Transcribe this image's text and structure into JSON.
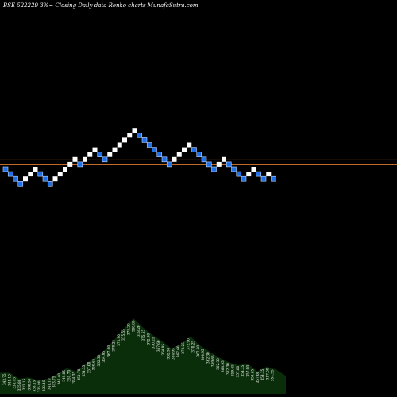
{
  "chart_data": {
    "type": "renko",
    "title": "BSE 522229 3%~   Closing Daily data  Renko  charts MunafaSutra.com",
    "colors": {
      "background": "#000000",
      "up_brick": "#ffffff",
      "down_brick": "#1f6fe6",
      "down_brick_edge": "#bcd4ff",
      "reference_line": "#c26a2a",
      "volume_fill": "#0a2e0a"
    },
    "reference_lines": [
      1,
      0
    ],
    "bricks": [
      {
        "level": 0,
        "dir": "down"
      },
      {
        "level": -1,
        "dir": "down"
      },
      {
        "level": -2,
        "dir": "down"
      },
      {
        "level": -3,
        "dir": "down"
      },
      {
        "level": -2,
        "dir": "up"
      },
      {
        "level": -1,
        "dir": "up"
      },
      {
        "level": 0,
        "dir": "up"
      },
      {
        "level": -1,
        "dir": "down"
      },
      {
        "level": -2,
        "dir": "down"
      },
      {
        "level": -3,
        "dir": "down"
      },
      {
        "level": -2,
        "dir": "up"
      },
      {
        "level": -1,
        "dir": "up"
      },
      {
        "level": 0,
        "dir": "up"
      },
      {
        "level": 1,
        "dir": "up"
      },
      {
        "level": 2,
        "dir": "up"
      },
      {
        "level": 1,
        "dir": "down"
      },
      {
        "level": 2,
        "dir": "up"
      },
      {
        "level": 3,
        "dir": "up"
      },
      {
        "level": 4,
        "dir": "up"
      },
      {
        "level": 3,
        "dir": "down"
      },
      {
        "level": 2,
        "dir": "down"
      },
      {
        "level": 3,
        "dir": "up"
      },
      {
        "level": 4,
        "dir": "up"
      },
      {
        "level": 5,
        "dir": "up"
      },
      {
        "level": 6,
        "dir": "up"
      },
      {
        "level": 7,
        "dir": "up"
      },
      {
        "level": 8,
        "dir": "up"
      },
      {
        "level": 7,
        "dir": "down"
      },
      {
        "level": 6,
        "dir": "down"
      },
      {
        "level": 5,
        "dir": "down"
      },
      {
        "level": 4,
        "dir": "down"
      },
      {
        "level": 3,
        "dir": "down"
      },
      {
        "level": 2,
        "dir": "down"
      },
      {
        "level": 1,
        "dir": "down"
      },
      {
        "level": 2,
        "dir": "up"
      },
      {
        "level": 3,
        "dir": "up"
      },
      {
        "level": 4,
        "dir": "up"
      },
      {
        "level": 5,
        "dir": "up"
      },
      {
        "level": 4,
        "dir": "down"
      },
      {
        "level": 3,
        "dir": "down"
      },
      {
        "level": 2,
        "dir": "down"
      },
      {
        "level": 1,
        "dir": "down"
      },
      {
        "level": 0,
        "dir": "down"
      },
      {
        "level": 1,
        "dir": "up"
      },
      {
        "level": 2,
        "dir": "up"
      },
      {
        "level": 1,
        "dir": "down"
      },
      {
        "level": 0,
        "dir": "down"
      },
      {
        "level": -1,
        "dir": "down"
      },
      {
        "level": -2,
        "dir": "down"
      },
      {
        "level": -1,
        "dir": "up"
      },
      {
        "level": 0,
        "dir": "up"
      },
      {
        "level": -1,
        "dir": "down"
      },
      {
        "level": -2,
        "dir": "down"
      },
      {
        "level": -1,
        "dir": "up"
      },
      {
        "level": -2,
        "dir": "down"
      }
    ],
    "volume_profile": [
      0.28,
      0.28,
      0.2,
      0.22,
      0.18,
      0.2,
      0.26,
      0.34,
      0.3,
      0.4,
      0.48,
      0.58,
      0.72,
      0.86,
      1.0,
      0.88,
      0.78,
      0.7,
      0.6,
      0.66,
      0.76,
      0.64,
      0.56,
      0.48,
      0.42,
      0.38,
      0.4,
      0.3,
      0.36,
      0.32,
      0.24
    ],
    "volume_labels": [
      "343.75",
      "341.10",
      "338.45",
      "335.80",
      "333.15",
      "330.50",
      "333.15",
      "335.80",
      "338.45",
      "341.10",
      "343.75",
      "346.40",
      "349.05",
      "351.70",
      "354.35",
      "351.70",
      "354.35",
      "357.00",
      "359.65",
      "362.30",
      "364.95",
      "367.60",
      "370.25",
      "372.90",
      "375.55",
      "378.20",
      "380.85",
      "378.20",
      "375.55",
      "372.90",
      "370.25",
      "367.60",
      "364.95",
      "362.30",
      "364.95",
      "367.60",
      "370.25",
      "372.90",
      "370.25",
      "367.60",
      "364.95",
      "362.30",
      "359.65",
      "362.30",
      "364.95",
      "362.30",
      "359.65",
      "357.00",
      "354.35",
      "357.00",
      "359.65",
      "357.00",
      "354.35",
      "357.00",
      "354.35"
    ]
  }
}
